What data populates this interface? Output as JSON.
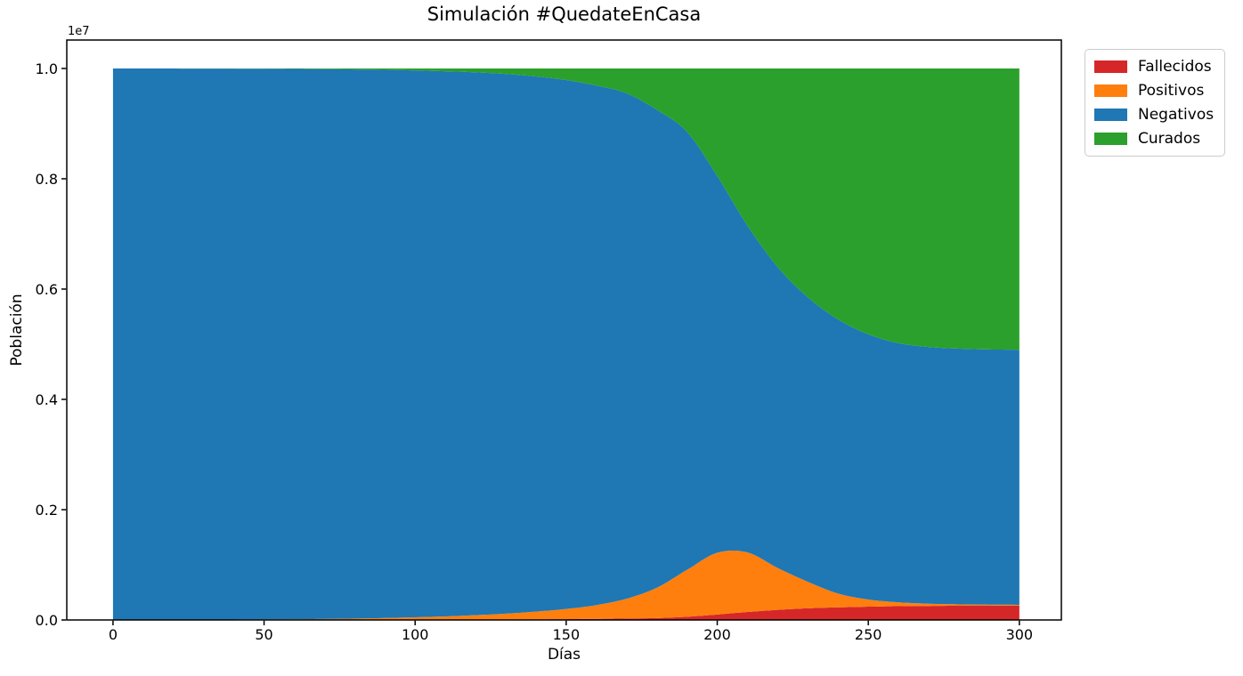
{
  "chart_data": {
    "type": "area",
    "stacked": true,
    "title": "Simulación #QuedateEnCasa",
    "xlabel": "Días",
    "ylabel": "Población",
    "y_offset_label": "1e7",
    "population_total": 10000000,
    "x": [
      0,
      10,
      20,
      30,
      40,
      50,
      60,
      70,
      80,
      90,
      100,
      110,
      120,
      130,
      140,
      150,
      160,
      170,
      180,
      190,
      200,
      210,
      220,
      230,
      240,
      250,
      260,
      270,
      280,
      290,
      300
    ],
    "series": [
      {
        "name": "Fallecidos",
        "color": "#d62728",
        "values": [
          0,
          0,
          0,
          0,
          1000,
          1000,
          1000,
          2000,
          2000,
          3000,
          4000,
          5000,
          7000,
          9000,
          12000,
          15000,
          20000,
          26000,
          35000,
          59000,
          99000,
          145000,
          183000,
          212000,
          229000,
          241000,
          250000,
          255000,
          258000,
          259000,
          260000
        ]
      },
      {
        "name": "Positivos",
        "color": "#ff7f0e",
        "values": [
          3000,
          4000,
          5000,
          6000,
          8000,
          10000,
          13000,
          17000,
          24000,
          33000,
          45000,
          60000,
          80000,
          105000,
          140000,
          185000,
          250000,
          360000,
          550000,
          850000,
          1120000,
          1080000,
          760000,
          480000,
          250000,
          130000,
          70000,
          40000,
          25000,
          18000,
          15000
        ]
      },
      {
        "name": "Negativos",
        "color": "#1f77b4",
        "values": [
          9997000,
          9996000,
          9994000,
          9992000,
          9988000,
          9984000,
          9978000,
          9969000,
          9956000,
          9939000,
          9916000,
          9885000,
          9843000,
          9786000,
          9703000,
          9590000,
          9420000,
          9164000,
          8665000,
          7941000,
          6831000,
          5925000,
          5457000,
          5158000,
          4971000,
          4809000,
          4700000,
          4655000,
          4637000,
          4628000,
          4625000
        ]
      },
      {
        "name": "Curados",
        "color": "#2ca02c",
        "values": [
          0,
          0,
          1000,
          2000,
          3000,
          5000,
          8000,
          12000,
          18000,
          25000,
          35000,
          50000,
          70000,
          100000,
          145000,
          210000,
          310000,
          450000,
          750000,
          1150000,
          1950000,
          2850000,
          3600000,
          4150000,
          4550000,
          4820000,
          4980000,
          5050000,
          5080000,
          5095000,
          5100000
        ]
      }
    ],
    "x_ticks": [
      0,
      50,
      100,
      150,
      200,
      250,
      300
    ],
    "y_ticks": [
      {
        "value": 0,
        "label": "0.0"
      },
      {
        "value": 2000000,
        "label": "0.2"
      },
      {
        "value": 4000000,
        "label": "0.4"
      },
      {
        "value": 6000000,
        "label": "0.6"
      },
      {
        "value": 8000000,
        "label": "0.8"
      },
      {
        "value": 10000000,
        "label": "1.0"
      }
    ],
    "xlim": [
      -15.3,
      313.9
    ],
    "ylim": [
      0,
      10516000
    ],
    "grid": false,
    "axis_color": "#000000",
    "legend": {
      "position": "upper-right-outside",
      "entries": [
        "Fallecidos",
        "Positivos",
        "Negativos",
        "Curados"
      ]
    }
  }
}
